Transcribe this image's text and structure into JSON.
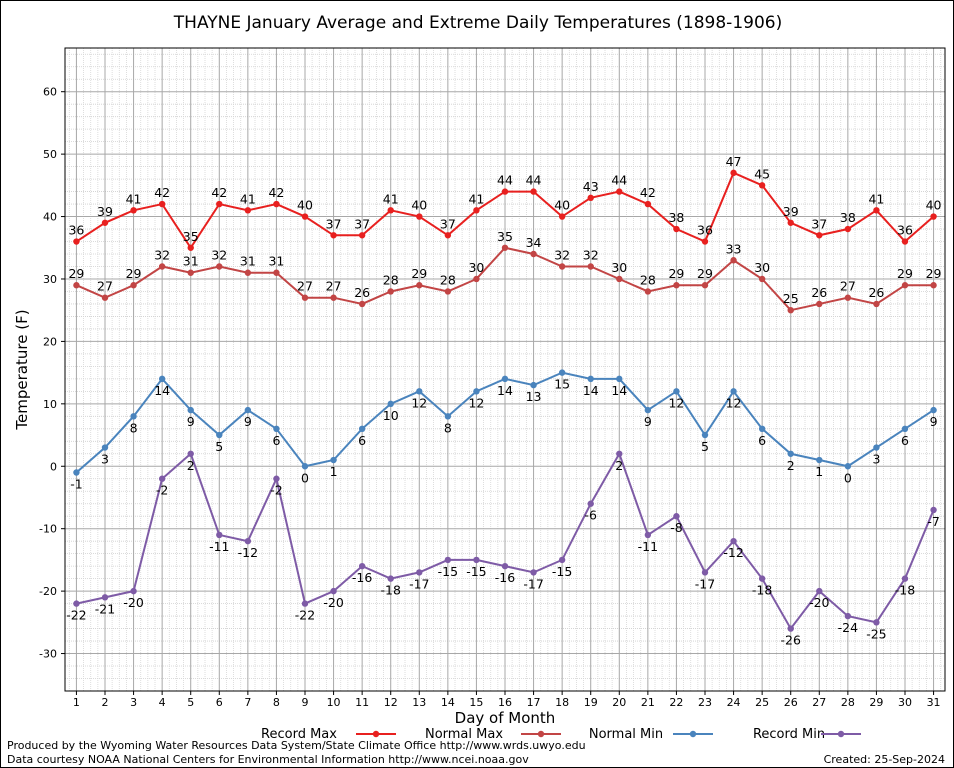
{
  "chart_data": {
    "type": "line",
    "title": "THAYNE January Average and Extreme Daily Temperatures (1898-1906)",
    "xlabel": "Day of Month",
    "ylabel": "Temperature (F)",
    "categories": [
      1,
      2,
      3,
      4,
      5,
      6,
      7,
      8,
      9,
      10,
      11,
      12,
      13,
      14,
      15,
      16,
      17,
      18,
      19,
      20,
      21,
      22,
      23,
      24,
      25,
      26,
      27,
      28,
      29,
      30,
      31
    ],
    "xlim": [
      0.6,
      31.4
    ],
    "ylim": [
      -36,
      67
    ],
    "yticks": [
      -30,
      -20,
      -10,
      0,
      10,
      20,
      30,
      40,
      50,
      60
    ],
    "grid": true,
    "legend_position": "bottom",
    "series": [
      {
        "name": "Record Max",
        "color": "#e8201f",
        "label_side": "above",
        "values": [
          36,
          39,
          41,
          42,
          35,
          42,
          41,
          42,
          40,
          37,
          37,
          41,
          40,
          37,
          41,
          44,
          44,
          40,
          43,
          44,
          42,
          38,
          36,
          47,
          45,
          39,
          37,
          38,
          41,
          36,
          40
        ]
      },
      {
        "name": "Normal Max",
        "color": "#c24545",
        "label_side": "above",
        "values": [
          29,
          27,
          29,
          32,
          31,
          32,
          31,
          31,
          27,
          27,
          26,
          28,
          29,
          28,
          30,
          35,
          34,
          32,
          32,
          30,
          28,
          29,
          29,
          33,
          30,
          25,
          26,
          27,
          26,
          29,
          29
        ]
      },
      {
        "name": "Normal Min",
        "color": "#4a84bd",
        "label_side": "below",
        "values": [
          -1,
          3,
          8,
          14,
          9,
          5,
          9,
          6,
          0,
          1,
          6,
          10,
          12,
          8,
          12,
          14,
          13,
          15,
          14,
          14,
          9,
          12,
          5,
          12,
          6,
          2,
          1,
          0,
          3,
          6,
          9
        ]
      },
      {
        "name": "Record Min",
        "color": "#7e5ba6",
        "label_side": "below",
        "values": [
          -22,
          -21,
          -20,
          -2,
          2,
          -11,
          -12,
          -2,
          -22,
          -20,
          -16,
          -18,
          -17,
          -15,
          -15,
          -16,
          -17,
          -15,
          -6,
          2,
          -11,
          -8,
          -17,
          -12,
          -18,
          -26,
          -20,
          -24,
          -25,
          -18,
          -7
        ]
      }
    ]
  },
  "footer": {
    "credit_line1": "Produced by the Wyoming Water Resources Data System/State Climate Office http://www.wrds.uwyo.edu",
    "credit_line2": "Data courtesy NOAA National Centers for Environmental Information http://www.ncei.noaa.gov",
    "created": "Created:  25-Sep-2024"
  }
}
